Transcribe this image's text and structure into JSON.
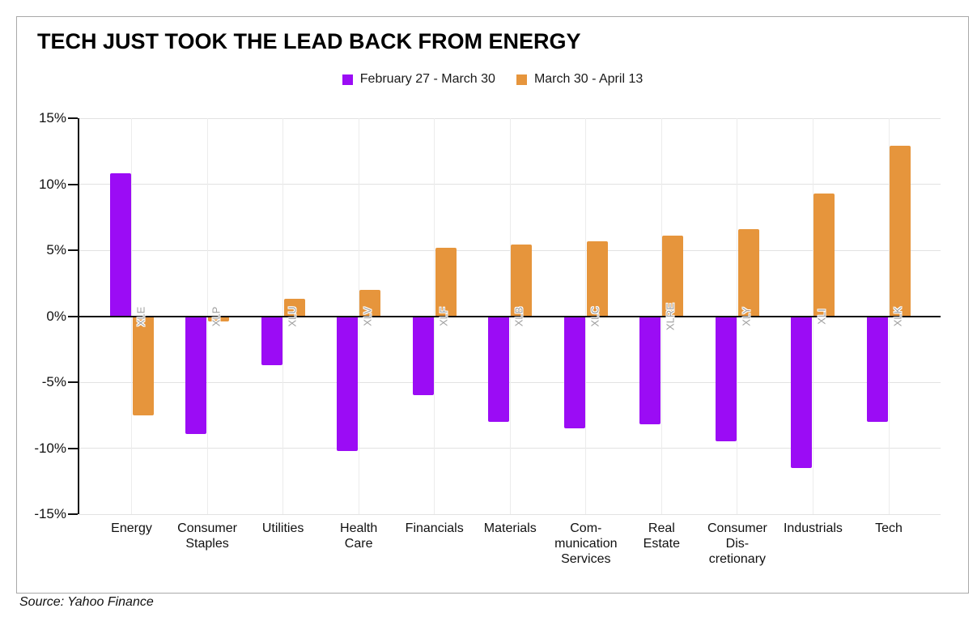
{
  "page": {
    "source": "Source: Yahoo Finance"
  },
  "chart_data": {
    "type": "bar",
    "title": "TECH JUST TOOK THE LEAD BACK FROM ENERGY",
    "categories": [
      "Energy",
      "Consumer\nStaples",
      "Utilities",
      "Health\nCare",
      "Financials",
      "Materials",
      "Com-\nmunication\nServices",
      "Real\nEstate",
      "Consumer\nDis-\ncretionary",
      "Industrials",
      "Tech"
    ],
    "category_tickers": [
      "XLE",
      "XLP",
      "XLU",
      "XLV",
      "XLF",
      "XLB",
      "XLC",
      "XLRE",
      "XLY",
      "XLI",
      "XLK"
    ],
    "series": [
      {
        "name": "February 27 - March 30",
        "color": "#9b0cf5",
        "values": [
          10.8,
          -8.9,
          -3.7,
          -10.2,
          -6.0,
          -8.0,
          -8.5,
          -8.2,
          -9.5,
          -11.5,
          -8.0
        ]
      },
      {
        "name": "March 30 - April 13",
        "color": "#e6953c",
        "values": [
          -7.5,
          -0.4,
          1.3,
          2.0,
          5.2,
          5.4,
          5.7,
          6.1,
          6.6,
          9.3,
          12.9
        ]
      }
    ],
    "xlabel": "",
    "ylabel": "",
    "ylim": [
      -15,
      15
    ],
    "y_tick_values": [
      15,
      10,
      5,
      0,
      -5,
      -10,
      -15
    ],
    "y_tick_labels": [
      "15%",
      "10%",
      "5%",
      "0%",
      "-5%",
      "-10%",
      "-15%"
    ],
    "grid": true,
    "legend_position": "top-center",
    "colors": {
      "purple_series": "#9b0cf5",
      "orange_series": "#e6953c",
      "axis": "#111111",
      "gridline": "#e2e2e2",
      "ticker_label": "#9e9e9e",
      "border": "#a9a9a9"
    }
  }
}
